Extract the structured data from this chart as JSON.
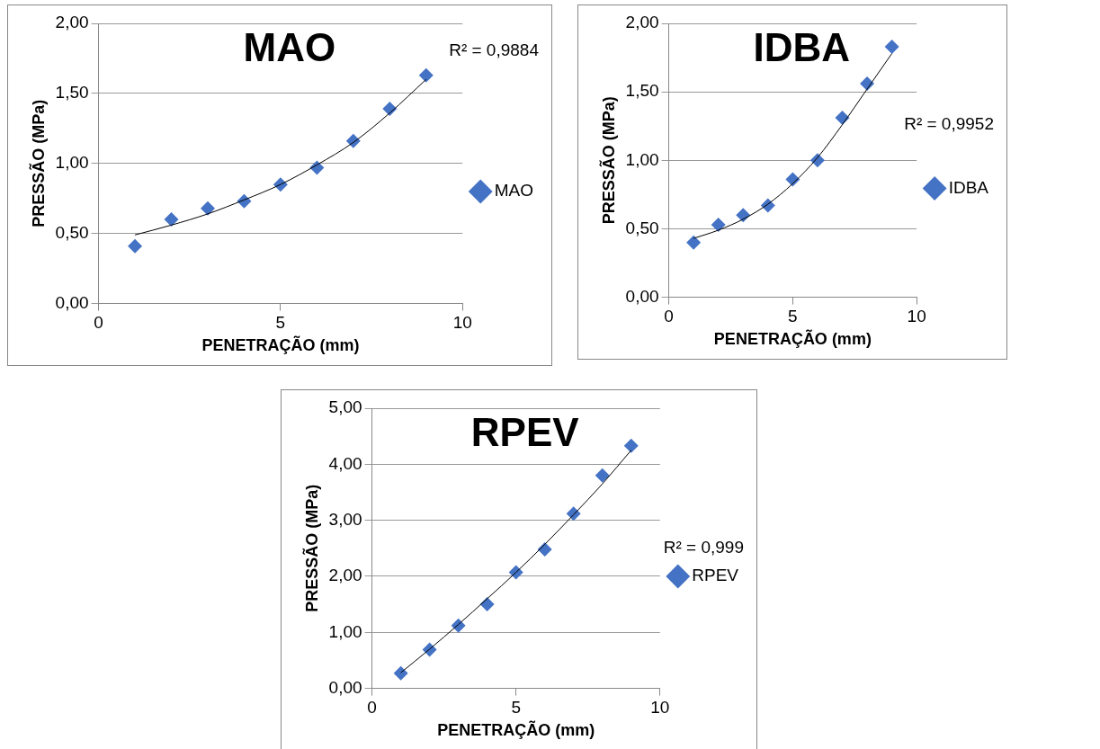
{
  "chart_data": [
    {
      "type": "scatter",
      "title": "MAO",
      "xlabel": "PENETRAÇÃO (mm)",
      "ylabel": "PRESSÃO (MPa)",
      "xlim": [
        0,
        10
      ],
      "xticks": [
        0,
        5,
        10
      ],
      "ylim": [
        0,
        2
      ],
      "yticks": [
        {
          "value": 0,
          "label": "0,00"
        },
        {
          "value": 0.5,
          "label": "0,50"
        },
        {
          "value": 1,
          "label": "1,00"
        },
        {
          "value": 1.5,
          "label": "1,50"
        },
        {
          "value": 2,
          "label": "2,00"
        }
      ],
      "grid": "y",
      "legend": "right",
      "marker": "diamond",
      "annotations": [
        "R² = 0,9884"
      ],
      "series": [
        {
          "name": "MAO",
          "color": "#4472c4",
          "x": [
            1,
            2,
            3,
            4,
            5,
            6,
            7,
            8,
            9
          ],
          "values": [
            0.41,
            0.6,
            0.68,
            0.73,
            0.85,
            0.97,
            1.16,
            1.39,
            1.63
          ]
        },
        {
          "type": "line",
          "marker": "none",
          "color": "#000000",
          "x": [
            1,
            2,
            3,
            4,
            5,
            6,
            7,
            8,
            9
          ],
          "values": [
            0.49,
            0.56,
            0.64,
            0.74,
            0.85,
            0.99,
            1.15,
            1.36,
            1.6
          ]
        }
      ]
    },
    {
      "type": "scatter",
      "title": "IDBA",
      "xlabel": "PENETRAÇÃO (mm)",
      "ylabel": "PRESSÃO (MPa)",
      "xlim": [
        0,
        10
      ],
      "xticks": [
        0,
        5,
        10
      ],
      "ylim": [
        0,
        2
      ],
      "yticks": [
        {
          "value": 0,
          "label": "0,00"
        },
        {
          "value": 0.5,
          "label": "0,50"
        },
        {
          "value": 1,
          "label": "1,00"
        },
        {
          "value": 1.5,
          "label": "1,50"
        },
        {
          "value": 2,
          "label": "2,00"
        }
      ],
      "grid": "y",
      "legend": "right",
      "marker": "diamond",
      "annotations": [
        "R² = 0,9952"
      ],
      "series": [
        {
          "name": "IDBA",
          "color": "#4472c4",
          "x": [
            1,
            2,
            3,
            4,
            5,
            6,
            7,
            8,
            9
          ],
          "values": [
            0.4,
            0.53,
            0.6,
            0.67,
            0.86,
            1.0,
            1.31,
            1.56,
            1.83
          ]
        },
        {
          "type": "line",
          "marker": "none",
          "color": "#000000",
          "x": [
            1,
            2,
            3,
            4,
            5,
            6,
            7,
            8,
            9
          ],
          "values": [
            0.43,
            0.49,
            0.57,
            0.68,
            0.83,
            1.02,
            1.26,
            1.52,
            1.78
          ]
        }
      ]
    },
    {
      "type": "scatter",
      "title": "RPEV",
      "xlabel": "PENETRAÇÃO (mm)",
      "ylabel": "PRESSÃO (MPa)",
      "xlim": [
        0,
        10
      ],
      "xticks": [
        0,
        5,
        10
      ],
      "ylim": [
        0,
        5
      ],
      "yticks": [
        {
          "value": 0,
          "label": "0,00"
        },
        {
          "value": 1,
          "label": "1,00"
        },
        {
          "value": 2,
          "label": "2,00"
        },
        {
          "value": 3,
          "label": "3,00"
        },
        {
          "value": 4,
          "label": "4,00"
        },
        {
          "value": 5,
          "label": "5,00"
        }
      ],
      "grid": "y",
      "legend": "right",
      "marker": "diamond",
      "annotations": [
        "R² = 0,999"
      ],
      "series": [
        {
          "name": "RPEV",
          "color": "#4472c4",
          "x": [
            1,
            2,
            3,
            4,
            5,
            6,
            7,
            8,
            9
          ],
          "values": [
            0.27,
            0.69,
            1.12,
            1.5,
            2.07,
            2.48,
            3.12,
            3.8,
            4.33
          ]
        },
        {
          "type": "line",
          "marker": "none",
          "color": "#000000",
          "x": [
            1,
            2,
            3,
            4,
            5,
            6,
            7,
            8,
            9
          ],
          "values": [
            0.28,
            0.7,
            1.14,
            1.6,
            2.07,
            2.57,
            3.1,
            3.65,
            4.25
          ]
        }
      ]
    }
  ]
}
